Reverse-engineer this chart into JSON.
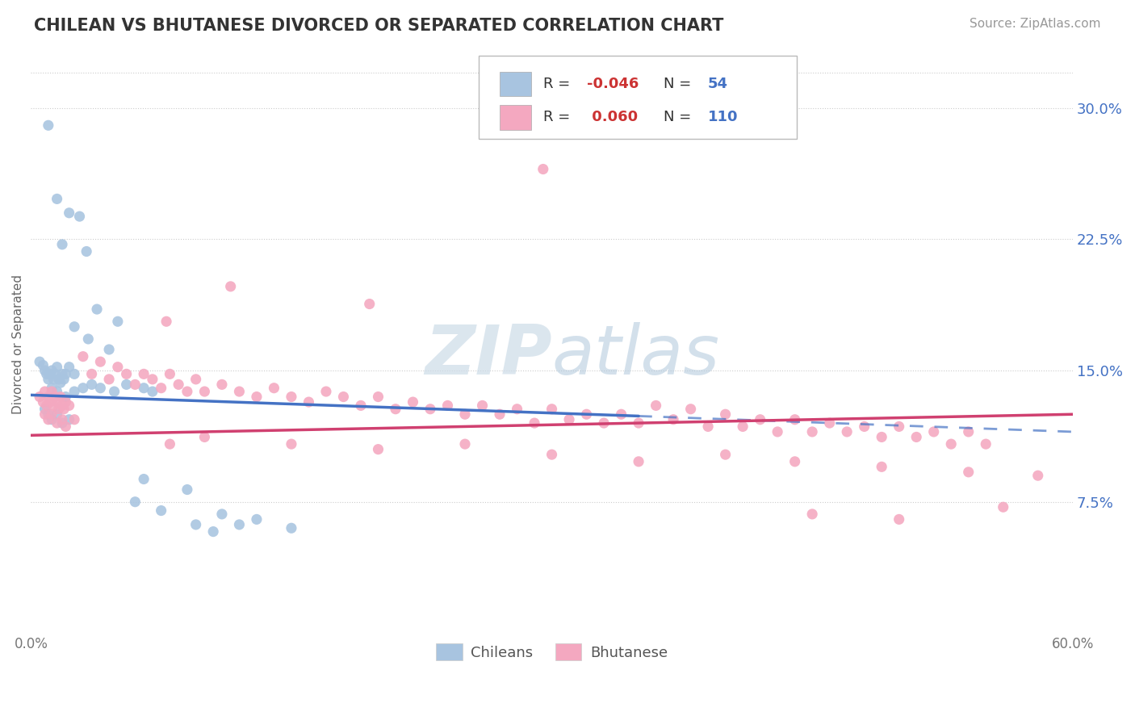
{
  "title": "CHILEAN VS BHUTANESE DIVORCED OR SEPARATED CORRELATION CHART",
  "source_text": "Source: ZipAtlas.com",
  "ylabel": "Divorced or Separated",
  "xlabel_chileans": "Chileans",
  "xlabel_bhutanese": "Bhutanese",
  "xmin": 0.0,
  "xmax": 0.6,
  "ymin": 0.0,
  "ymax": 0.32,
  "yticks": [
    0.075,
    0.15,
    0.225,
    0.3
  ],
  "ytick_labels": [
    "7.5%",
    "15.0%",
    "22.5%",
    "30.0%"
  ],
  "color_chilean": "#a8c4e0",
  "color_bhutanese": "#f4a8c0",
  "color_trendline_chilean": "#4472c4",
  "color_trendline_bhutanese": "#d04070",
  "color_title": "#333333",
  "color_axis_right": "#4472c4",
  "color_axis_bottom": "#777777",
  "watermark_color": "#cddce8",
  "background_color": "#ffffff",
  "grid_color": "#cccccc",
  "chilean_trend_x0": 0.0,
  "chilean_trend_y0": 0.136,
  "chilean_trend_x1": 0.35,
  "chilean_trend_y1": 0.124,
  "chilean_trend_dash_x1": 0.6,
  "chilean_trend_dash_y1": 0.115,
  "bhutanese_trend_x0": 0.0,
  "bhutanese_trend_y0": 0.113,
  "bhutanese_trend_x1": 0.6,
  "bhutanese_trend_y1": 0.125,
  "legend_r1_label": "R = ",
  "legend_r1_val": "-0.046",
  "legend_n1_label": "N = ",
  "legend_n1_val": " 54",
  "legend_r2_label": "R = ",
  "legend_r2_val": " 0.060",
  "legend_n2_label": "N = ",
  "legend_n2_val": "110"
}
